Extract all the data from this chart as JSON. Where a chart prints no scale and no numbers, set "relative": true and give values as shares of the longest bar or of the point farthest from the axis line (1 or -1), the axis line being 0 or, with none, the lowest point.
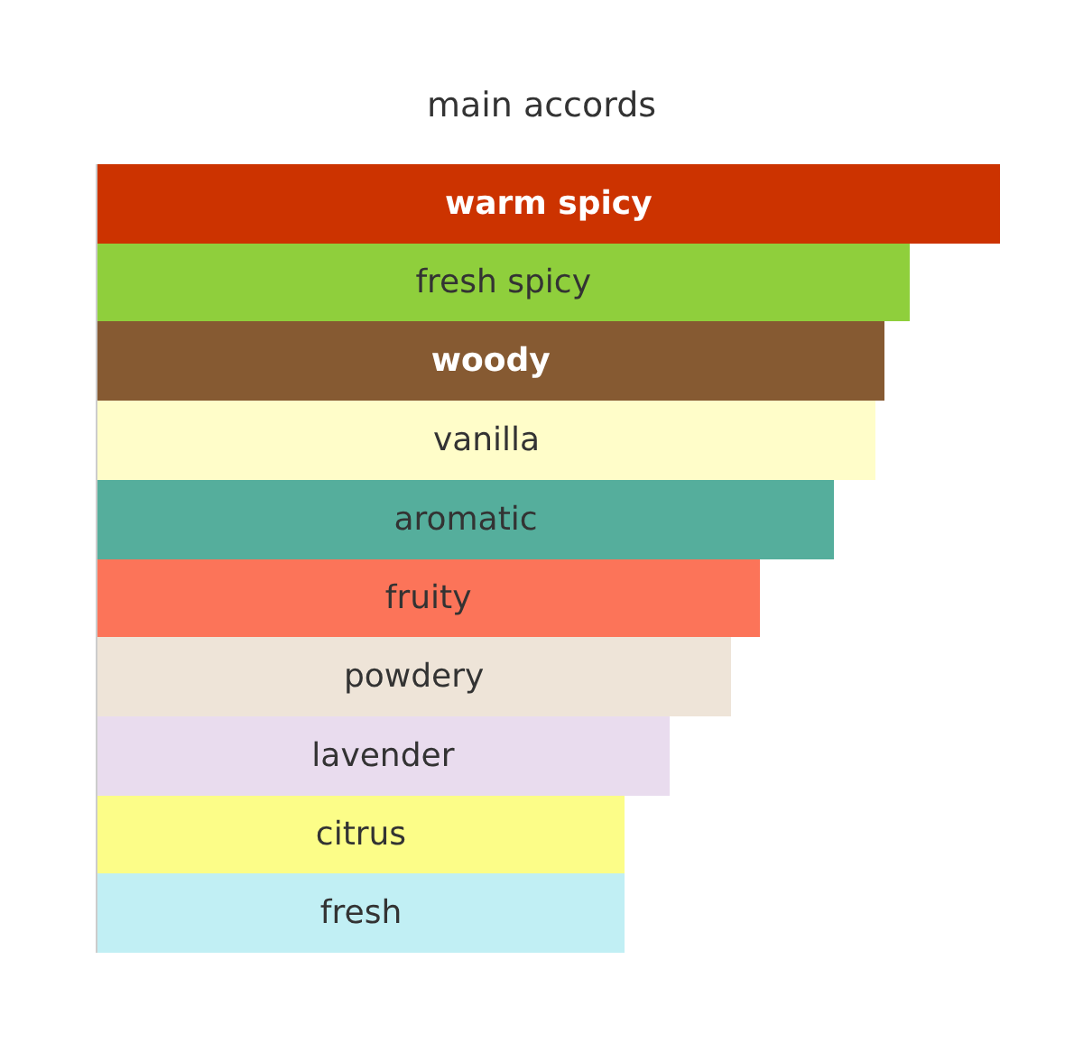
{
  "chart_data": {
    "type": "bar",
    "orientation": "horizontal",
    "relative": true,
    "title": "main accords",
    "categories": [
      "warm spicy",
      "fresh spicy",
      "woody",
      "vanilla",
      "aromatic",
      "fruity",
      "powdery",
      "lavender",
      "citrus",
      "fresh"
    ],
    "values": [
      1,
      0.9,
      0.872,
      0.862,
      0.816,
      0.734,
      0.702,
      0.634,
      0.584,
      0.584
    ],
    "colors": [
      "#cc3300",
      "#8fcf3c",
      "#865a32",
      "#fffdc9",
      "#55ae9c",
      "#fc7459",
      "#eee4d8",
      "#e9dcee",
      "#fcfd88",
      "#c1eff4"
    ],
    "legend": false
  }
}
